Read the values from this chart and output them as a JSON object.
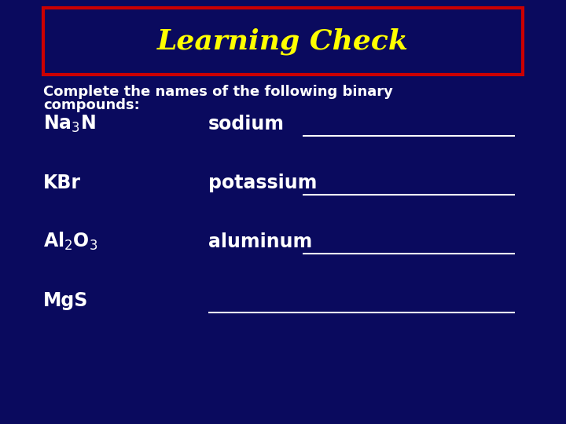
{
  "bg_color": "#0a0a5e",
  "title": "Learning Check",
  "title_color": "#ffff00",
  "title_box_edge_color": "#cc0000",
  "title_box_face_color": "#0a0a5e",
  "body_text_color": "#ffffff",
  "subtitle_line1": "Complete the names of the following binary",
  "subtitle_line2": "compounds:",
  "rows": [
    {
      "formula": "Na$_3$N",
      "word": "sodium",
      "has_line": true,
      "line_word_only": true
    },
    {
      "formula": "KBr",
      "word": "potassium",
      "has_line": true,
      "line_word_only": true
    },
    {
      "formula": "Al$_2$O$_3$",
      "word": "aluminum",
      "has_line": true,
      "line_word_only": true
    },
    {
      "formula": "MgS",
      "word": "",
      "has_line": true,
      "line_word_only": false
    }
  ],
  "line_color": "#ffffff",
  "figsize": [
    7.2,
    5.4
  ],
  "dpi": 100
}
